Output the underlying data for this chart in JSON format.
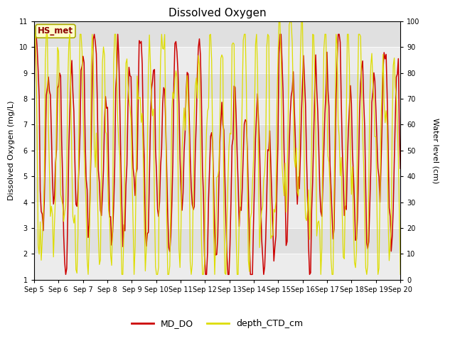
{
  "title": "Dissolved Oxygen",
  "ylabel_left": "Dissolved Oxygen (mg/L)",
  "ylabel_right": "Water level (cm)",
  "ylim_left": [
    1.0,
    11.0
  ],
  "ylim_right": [
    0,
    100
  ],
  "yticks_left": [
    1.0,
    2.0,
    3.0,
    4.0,
    5.0,
    6.0,
    7.0,
    8.0,
    9.0,
    10.0,
    11.0
  ],
  "yticks_right": [
    0,
    10,
    20,
    30,
    40,
    50,
    60,
    70,
    80,
    90,
    100
  ],
  "xticklabels": [
    "Sep 5",
    "Sep 6",
    "Sep 7",
    "Sep 8",
    "Sep 9",
    "Sep 10",
    "Sep 11",
    "Sep 12",
    "Sep 13",
    "Sep 14",
    "Sep 15",
    "Sep 16",
    "Sep 17",
    "Sep 18",
    "Sep 19",
    "Sep 20"
  ],
  "legend_labels": [
    "MD_DO",
    "depth_CTD_cm"
  ],
  "line_color_DO": "#cc0000",
  "line_color_depth": "#dddd00",
  "annotation_text": "HS_met",
  "annotation_color": "#8b0000",
  "annotation_bg": "#ffffcc",
  "annotation_border": "#aaaa00",
  "fig_facecolor": "#ffffff",
  "plot_facecolor": "#ffffff",
  "band_color_dark": "#e0e0e0",
  "band_color_light": "#ececec",
  "title_fontsize": 11,
  "axis_label_fontsize": 8,
  "tick_fontsize": 7,
  "legend_fontsize": 9
}
